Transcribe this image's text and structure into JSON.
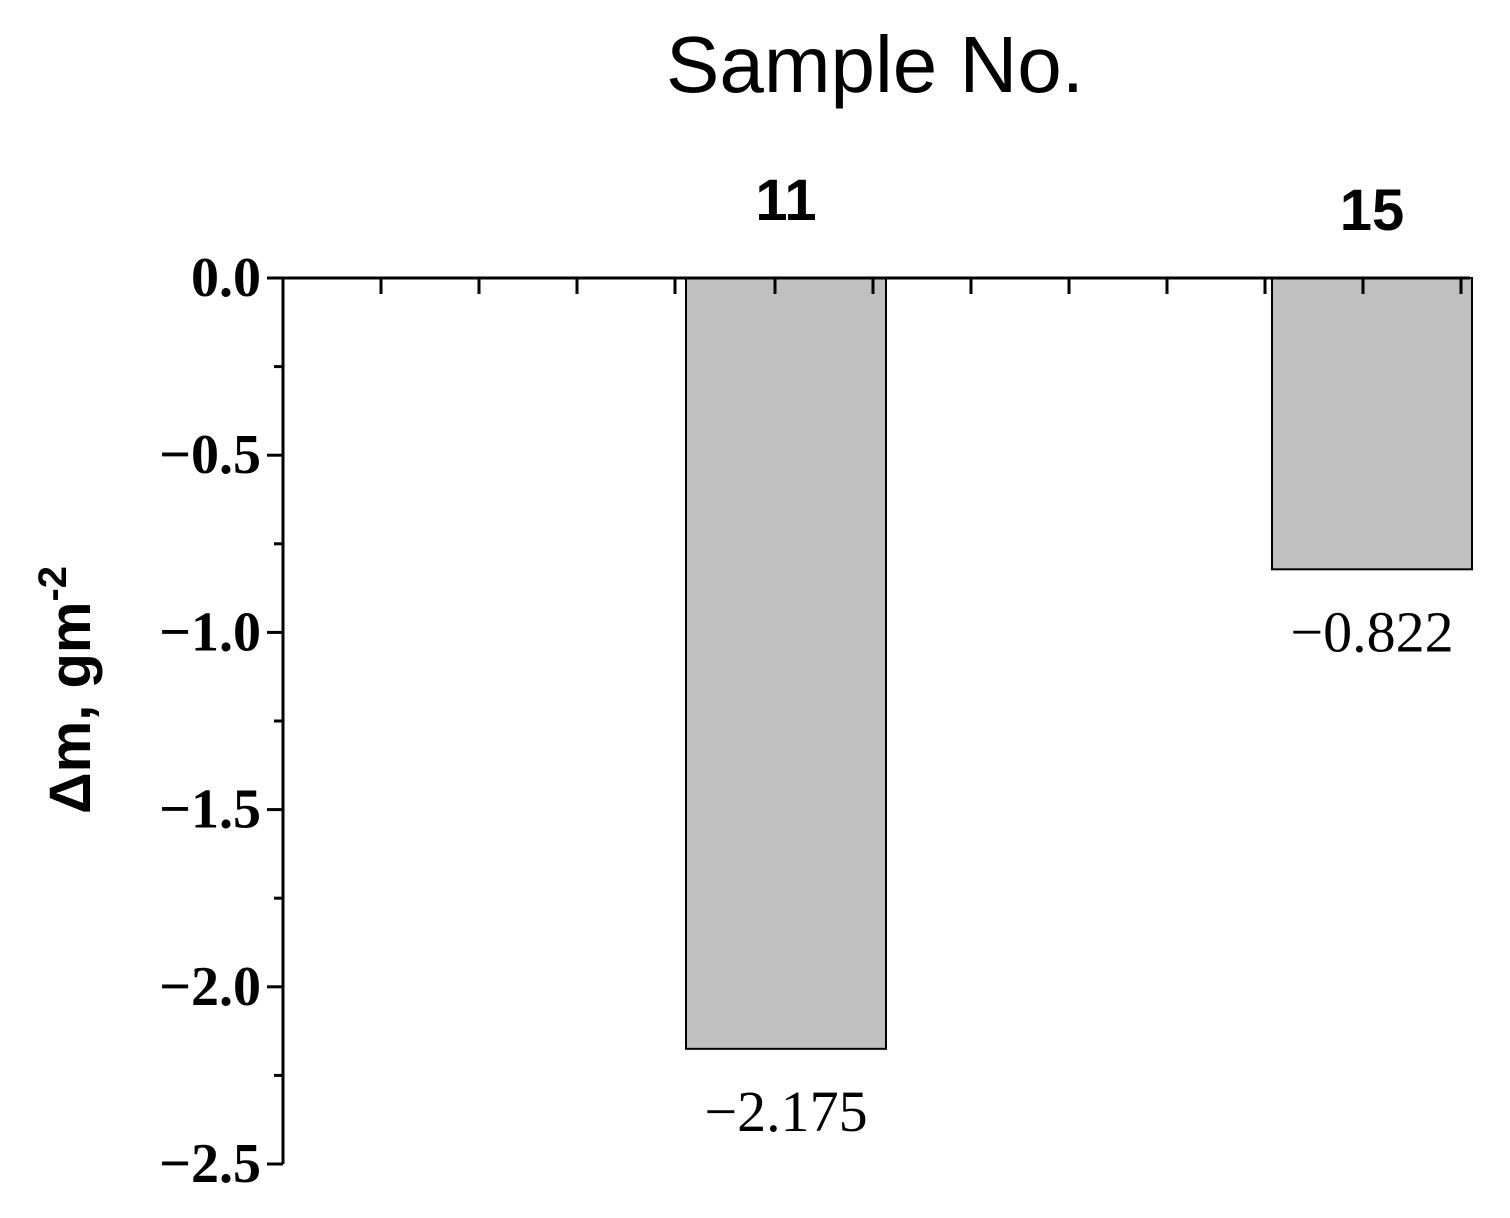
{
  "chart_data": {
    "type": "bar",
    "xlabel": "Sample No.",
    "ylabel": "Δm, gm",
    "ylabel_superscript": "-2",
    "categories": [
      "11",
      "15"
    ],
    "values": [
      -2.175,
      -0.822
    ],
    "data_labels": [
      "−2.175",
      "−0.822"
    ],
    "ylim": [
      -2.5,
      0.0
    ],
    "yticks": [
      {
        "value": 0.0,
        "label": "0.0"
      },
      {
        "value": -0.5,
        "label": "−0.5"
      },
      {
        "value": -1.0,
        "label": "−1.0"
      },
      {
        "value": -1.5,
        "label": "−1.5"
      },
      {
        "value": -2.0,
        "label": "−2.0"
      },
      {
        "value": -2.5,
        "label": "−2.5"
      }
    ],
    "x_axis_position": "top",
    "grid": false,
    "bar_color": "#c0c0c0"
  }
}
